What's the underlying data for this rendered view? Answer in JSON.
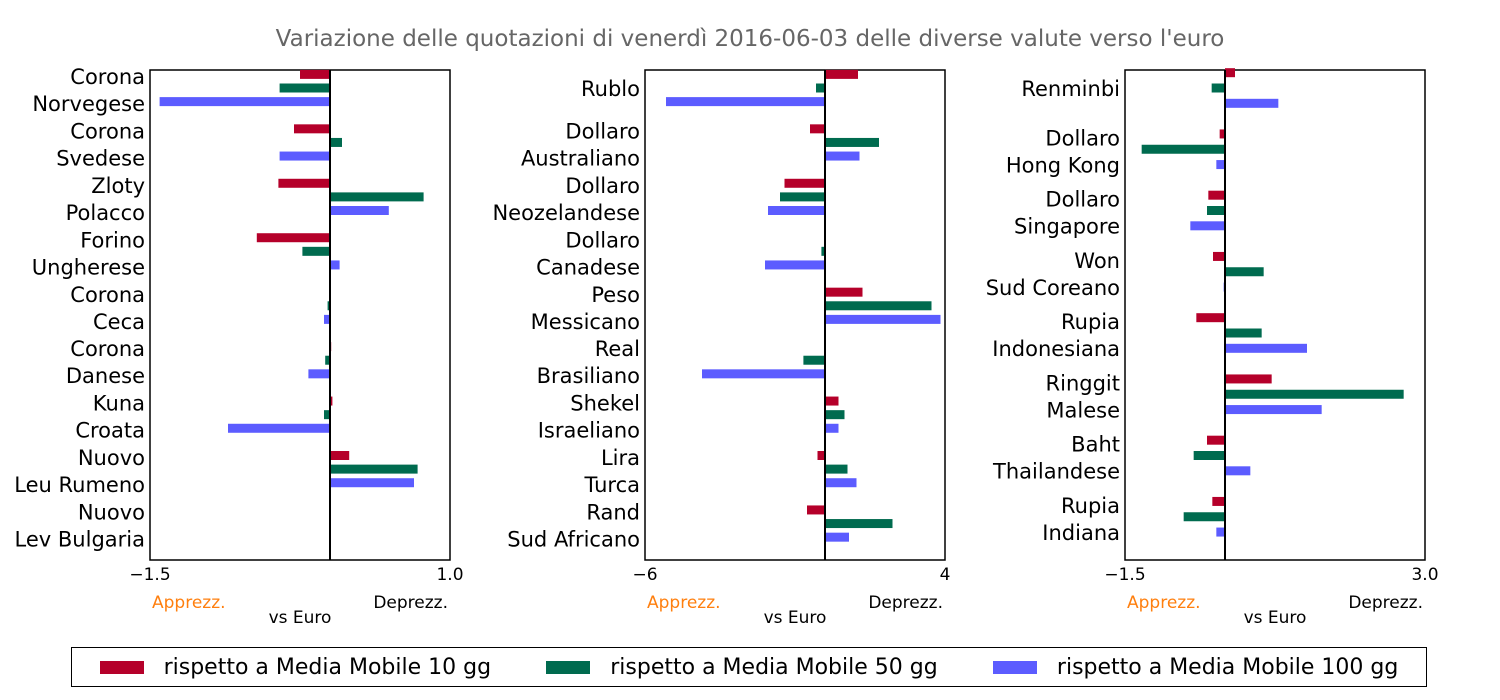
{
  "title": "Variazione delle quotazioni di venerdì 2016-06-03 delle diverse valute verso l'euro",
  "colors": {
    "s10": "#b5002a",
    "s50": "#006b4f",
    "s100": "#5c5cff",
    "apprezz": "#ff7f0e",
    "axis": "#000000"
  },
  "legend": [
    {
      "label": "rispetto a Media Mobile 10 gg",
      "color": "#b5002a"
    },
    {
      "label": "rispetto a Media Mobile 50 gg",
      "color": "#006b4f"
    },
    {
      "label": "rispetto a Media Mobile 100 gg",
      "color": "#5c5cff"
    }
  ],
  "chart_data": [
    {
      "type": "bar",
      "orientation": "horizontal",
      "xlim": [
        -1.5,
        1.0
      ],
      "xticks": [
        "−1.5",
        "1.0"
      ],
      "xlabel": "vs Euro",
      "left_note": "Apprezz.",
      "right_note": "Deprezz.",
      "categories": [
        [
          "Corona",
          "Norvegese"
        ],
        [
          "Corona",
          "Svedese"
        ],
        [
          "Zloty",
          "Polacco"
        ],
        [
          "Forino",
          "Ungherese"
        ],
        [
          "Corona",
          "Ceca"
        ],
        [
          "Corona",
          "Danese"
        ],
        [
          "Kuna",
          "Croata"
        ],
        [
          "Nuovo",
          "Leu Rumeno"
        ],
        [
          "Nuovo",
          "Lev Bulgaria"
        ]
      ],
      "series": [
        {
          "name": "rispetto a Media Mobile 10 gg",
          "values": [
            -0.25,
            -0.3,
            -0.43,
            -0.61,
            0.0,
            0.01,
            0.02,
            0.16,
            0.0
          ]
        },
        {
          "name": "rispetto a Media Mobile 50 gg",
          "values": [
            -0.42,
            0.1,
            0.78,
            -0.23,
            -0.02,
            -0.04,
            -0.05,
            0.73,
            0.0
          ]
        },
        {
          "name": "rispetto a Media Mobile 100 gg",
          "values": [
            -1.42,
            -0.42,
            0.49,
            0.08,
            -0.05,
            -0.18,
            -0.85,
            0.7,
            0.0
          ]
        }
      ]
    },
    {
      "type": "bar",
      "orientation": "horizontal",
      "xlim": [
        -6,
        4
      ],
      "xticks": [
        "−6",
        "4"
      ],
      "xlabel": "vs Euro",
      "left_note": "Apprezz.",
      "right_note": "Deprezz.",
      "categories": [
        [
          "Rublo"
        ],
        [
          "Dollaro",
          "Australiano"
        ],
        [
          "Dollaro",
          "Neozelandese"
        ],
        [
          "Dollaro",
          "Canadese"
        ],
        [
          "Peso",
          "Messicano"
        ],
        [
          "Real",
          "Brasiliano"
        ],
        [
          "Shekel",
          "Israeliano"
        ],
        [
          "Lira",
          "Turca"
        ],
        [
          "Rand",
          "Sud Africano"
        ]
      ],
      "series": [
        {
          "name": "rispetto a Media Mobile 10 gg",
          "values": [
            1.1,
            -0.5,
            -1.35,
            -0.02,
            1.25,
            -0.02,
            0.45,
            -0.25,
            -0.6
          ]
        },
        {
          "name": "rispetto a Media Mobile 50 gg",
          "values": [
            -0.3,
            1.8,
            -1.5,
            -0.12,
            3.55,
            -0.72,
            0.65,
            0.75,
            2.25
          ]
        },
        {
          "name": "rispetto a Media Mobile 100 gg",
          "values": [
            -5.3,
            1.15,
            -1.9,
            -2.0,
            3.85,
            -4.1,
            0.45,
            1.05,
            0.8
          ]
        }
      ]
    },
    {
      "type": "bar",
      "orientation": "horizontal",
      "xlim": [
        -1.5,
        3.0
      ],
      "xticks": [
        "−1.5",
        "3.0"
      ],
      "xlabel": "vs Euro",
      "left_note": "Apprezz.",
      "right_note": "Deprezz.",
      "categories": [
        [
          "Renminbi"
        ],
        [
          "Dollaro",
          "Hong Kong"
        ],
        [
          "Dollaro",
          "Singapore"
        ],
        [
          "Won",
          "Sud Coreano"
        ],
        [
          "Rupia",
          "Indonesiana"
        ],
        [
          "Ringgit",
          "Malese"
        ],
        [
          "Baht",
          "Thailandese"
        ],
        [
          "Rupia",
          "Indiana"
        ]
      ],
      "series": [
        {
          "name": "rispetto a Media Mobile 10 gg",
          "values": [
            0.15,
            -0.08,
            -0.25,
            -0.18,
            -0.43,
            0.7,
            -0.27,
            -0.19
          ]
        },
        {
          "name": "rispetto a Media Mobile 50 gg",
          "values": [
            -0.2,
            -1.25,
            -0.27,
            0.58,
            0.55,
            2.68,
            -0.47,
            -0.62
          ]
        },
        {
          "name": "rispetto a Media Mobile 100 gg",
          "values": [
            0.8,
            -0.13,
            -0.52,
            -0.02,
            1.23,
            1.45,
            0.38,
            -0.13
          ]
        }
      ]
    }
  ]
}
